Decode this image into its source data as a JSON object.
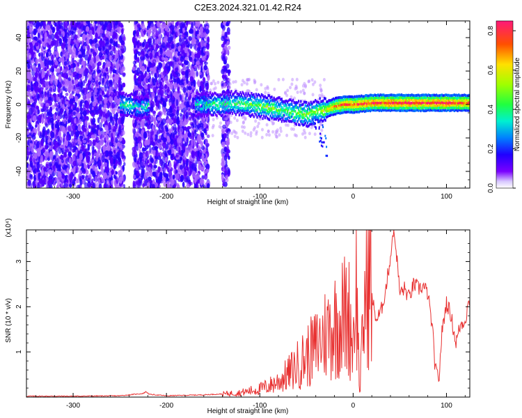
{
  "title": "C2E3.2024.321.01.42.R24",
  "chart_data": [
    {
      "type": "heatmap",
      "xlabel": "Height of straight line (km)",
      "ylabel": "Frequency (Hz)",
      "xlim": [
        -350,
        125
      ],
      "ylim": [
        -50,
        50
      ],
      "x_ticks": [
        -300,
        -200,
        -100,
        0,
        100
      ],
      "y_ticks": [
        -40,
        -20,
        0,
        20,
        40
      ],
      "colorbar": {
        "label": "Normalized spectral amplitude",
        "range": [
          0,
          0.85
        ],
        "ticks": [
          "0.0",
          "0.2",
          "0.4",
          "0.6",
          "0.8"
        ]
      },
      "noise_regions_km": [
        [
          -350,
          -245
        ],
        [
          -235,
          -155
        ],
        [
          -140,
          -133
        ]
      ],
      "signal_band": {
        "x": [
          -250,
          -240,
          -230,
          -220,
          -170,
          -150,
          -130,
          -110,
          -100,
          -90,
          -80,
          -70,
          -60,
          -50,
          -40,
          -30,
          -20,
          -10,
          0,
          20,
          40,
          60,
          80,
          100,
          125
        ],
        "center_hz": [
          0,
          0,
          -2,
          -1,
          0,
          0,
          1,
          0,
          -1,
          -2,
          -3,
          -4,
          -5,
          -6,
          -4,
          -3,
          -1,
          0,
          0,
          1,
          1,
          1,
          1,
          1,
          1
        ],
        "amplitude": [
          0.35,
          0.4,
          0.3,
          0.35,
          0.35,
          0.4,
          0.4,
          0.45,
          0.5,
          0.5,
          0.45,
          0.45,
          0.5,
          0.5,
          0.5,
          0.55,
          0.7,
          0.75,
          0.75,
          0.8,
          0.8,
          0.8,
          0.8,
          0.8,
          0.75
        ]
      }
    },
    {
      "type": "line",
      "xlabel": "Height of straight line (km)",
      "ylabel": "SNR (10 * v/v)",
      "y_scale_label": "(x10⁴)",
      "xlim": [
        -350,
        125
      ],
      "ylim": [
        0,
        3.7
      ],
      "x_ticks": [
        -300,
        -200,
        -100,
        0,
        100
      ],
      "y_ticks": [
        1,
        2,
        3
      ],
      "series": [
        {
          "color": "#e83030",
          "x": [
            -350,
            -300,
            -250,
            -225,
            -222,
            -218,
            -200,
            -160,
            -140,
            -120,
            -100,
            -90,
            -80,
            -70,
            -60,
            -50,
            -40,
            -30,
            -20,
            -10,
            -5,
            0,
            3,
            7,
            12,
            15,
            18,
            20,
            25,
            30,
            35,
            40,
            43,
            46,
            50,
            55,
            60,
            65,
            70,
            75,
            80,
            85,
            88,
            92,
            95,
            100,
            105,
            110,
            115,
            120,
            125
          ],
          "y": [
            0.02,
            0.02,
            0.03,
            0.08,
            0.12,
            0.06,
            0.03,
            0.05,
            0.07,
            0.1,
            0.18,
            0.25,
            0.35,
            0.5,
            0.7,
            0.9,
            1.1,
            1.4,
            1.6,
            1.8,
            1.85,
            1.2,
            2.9,
            0.1,
            2.0,
            2.6,
            2.9,
            2.2,
            1.7,
            1.9,
            2.4,
            3.1,
            3.7,
            3.3,
            2.3,
            2.4,
            2.2,
            2.5,
            2.4,
            2.45,
            2.3,
            1.5,
            0.6,
            0.4,
            1.4,
            2.1,
            1.8,
            1.2,
            1.6,
            1.7,
            2.2
          ]
        }
      ]
    }
  ]
}
